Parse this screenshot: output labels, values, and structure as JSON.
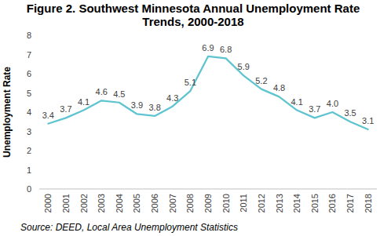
{
  "chart_data": {
    "type": "line",
    "title": "Figure 2. Southwest Minnesota Annual Unemployment Rate Trends, 2000-2018",
    "y_label": "Unemployment Rate",
    "source": "Source: DEED, Local Area Unemployment Statistics",
    "categories": [
      "2000",
      "2001",
      "2002",
      "2003",
      "2004",
      "2005",
      "2006",
      "2007",
      "2008",
      "2009",
      "2010",
      "2011",
      "2012",
      "2013",
      "2014",
      "2015",
      "2016",
      "2017",
      "2018"
    ],
    "values": [
      3.4,
      3.7,
      4.1,
      4.6,
      4.5,
      3.9,
      3.8,
      4.3,
      5.1,
      6.9,
      6.8,
      5.9,
      5.2,
      4.8,
      4.1,
      3.7,
      4.0,
      3.5,
      3.1
    ],
    "value_labels": [
      "3.4",
      "3.7",
      "4.1",
      "4.6",
      "4.5",
      "3.9",
      "3.8",
      "4.3",
      "5.1",
      "6.9",
      "6.8",
      "5.9",
      "5.2",
      "4.8",
      "4.1",
      "3.7",
      "4.0",
      "3.5",
      "3.1"
    ],
    "color": "#5ec4d0",
    "ylim": [
      0,
      8
    ],
    "yticks": [
      0,
      1,
      2,
      3,
      4,
      5,
      6,
      7,
      8
    ],
    "grid": false,
    "data_labels": true
  }
}
